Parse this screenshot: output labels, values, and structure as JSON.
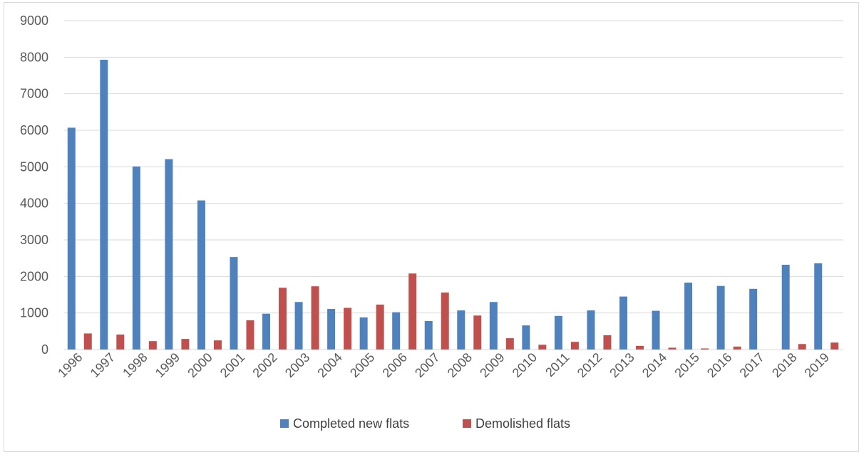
{
  "chart_data": {
    "type": "bar",
    "title": "",
    "xlabel": "",
    "ylabel": "",
    "ylim": [
      0,
      9000
    ],
    "yticks": [
      0,
      1000,
      2000,
      3000,
      4000,
      5000,
      6000,
      7000,
      8000,
      9000
    ],
    "grid": true,
    "legend_position": "bottom",
    "categories": [
      "1996",
      "1997",
      "1998",
      "1999",
      "2000",
      "2001",
      "2002",
      "2003",
      "2004",
      "2005",
      "2006",
      "2007",
      "2008",
      "2009",
      "2010",
      "2011",
      "2012",
      "2013",
      "2014",
      "2015",
      "2016",
      "2017",
      "2018",
      "2019"
    ],
    "series": [
      {
        "name": "Completed new flats",
        "color": "#4f81bd",
        "values": [
          6070,
          7930,
          5010,
          5210,
          4080,
          2530,
          980,
          1300,
          1110,
          880,
          1020,
          780,
          1070,
          1300,
          660,
          920,
          1070,
          1450,
          1060,
          1830,
          1740,
          1660,
          2320,
          2360
        ]
      },
      {
        "name": "Demolished flats",
        "color": "#c0504d",
        "values": [
          440,
          410,
          230,
          290,
          250,
          800,
          1690,
          1730,
          1140,
          1230,
          2080,
          1560,
          930,
          310,
          130,
          210,
          390,
          100,
          50,
          30,
          80,
          0,
          150,
          190
        ]
      }
    ]
  }
}
